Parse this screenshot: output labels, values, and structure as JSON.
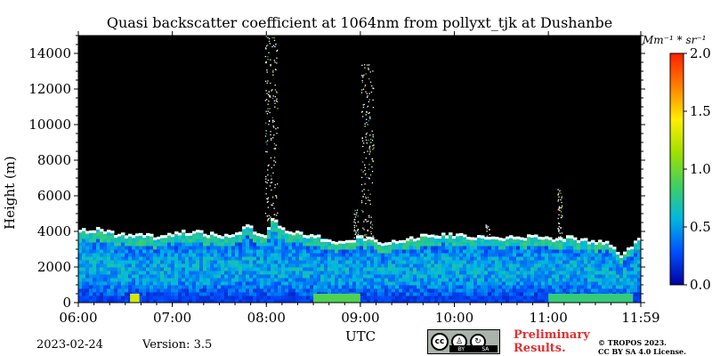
{
  "chart_data": {
    "type": "heatmap",
    "title": "Quasi backscatter coefficient at 1064nm from pollyxt_tjk at Dushanbe",
    "xlabel": "UTC",
    "ylabel": "Height (m)",
    "xlim": [
      "06:00",
      "11:59"
    ],
    "ylim": [
      0,
      15000
    ],
    "x_ticks": [
      "06:00",
      "07:00",
      "08:00",
      "09:00",
      "10:00",
      "11:00",
      "11:59"
    ],
    "x_tick_hours": [
      6.0,
      7.0,
      8.0,
      9.0,
      10.0,
      11.0,
      11.983
    ],
    "y_ticks": [
      0,
      2000,
      4000,
      6000,
      8000,
      10000,
      12000,
      14000
    ],
    "y_tick_labels": [
      "0",
      "2000",
      "4000",
      "6000",
      "8000",
      "10000",
      "12000",
      "14000"
    ],
    "colorbar": {
      "unit_label": "Mm⁻¹ * sr⁻¹",
      "range": [
        0.0,
        2.0
      ],
      "ticks": [
        "0.0",
        "0.5",
        "1.0",
        "1.5",
        "2.0"
      ],
      "tick_values": [
        0.0,
        0.5,
        1.0,
        1.5,
        2.0
      ],
      "colormap": [
        "#0000a0",
        "#0050ff",
        "#00b8e0",
        "#40d060",
        "#a0e000",
        "#ffee00",
        "#ff8000",
        "#ff2000"
      ]
    },
    "background_color": "#000000",
    "layer_top_profile_m": [
      [
        6.0,
        3900
      ],
      [
        6.2,
        4000
      ],
      [
        6.4,
        3700
      ],
      [
        6.6,
        3700
      ],
      [
        6.8,
        3600
      ],
      [
        7.0,
        3800
      ],
      [
        7.2,
        3900
      ],
      [
        7.4,
        3700
      ],
      [
        7.6,
        3600
      ],
      [
        7.8,
        4200
      ],
      [
        7.95,
        3500
      ],
      [
        8.05,
        4600
      ],
      [
        8.2,
        3900
      ],
      [
        8.4,
        3700
      ],
      [
        8.6,
        3500
      ],
      [
        8.8,
        3300
      ],
      [
        9.0,
        3600
      ],
      [
        9.2,
        3300
      ],
      [
        9.4,
        3400
      ],
      [
        9.6,
        3600
      ],
      [
        9.8,
        3700
      ],
      [
        10.0,
        3700
      ],
      [
        10.2,
        3600
      ],
      [
        10.4,
        3500
      ],
      [
        10.6,
        3500
      ],
      [
        10.8,
        3600
      ],
      [
        11.0,
        3500
      ],
      [
        11.2,
        3500
      ],
      [
        11.4,
        3400
      ],
      [
        11.6,
        3300
      ],
      [
        11.75,
        2500
      ],
      [
        11.9,
        3200
      ],
      [
        11.983,
        3600
      ]
    ],
    "plumes": [
      {
        "time": 8.05,
        "top_m": 15000
      },
      {
        "time": 8.95,
        "top_m": 5400
      },
      {
        "time": 9.07,
        "top_m": 13400
      },
      {
        "time": 10.35,
        "top_m": 4400
      },
      {
        "time": 11.12,
        "top_m": 6400
      }
    ],
    "surface_high_segments": [
      {
        "start": 6.55,
        "end": 6.65,
        "value": 1.3
      },
      {
        "start": 8.5,
        "end": 9.0,
        "value": 0.9
      },
      {
        "start": 11.0,
        "end": 11.9,
        "value": 0.8
      }
    ],
    "grid": false
  },
  "footer": {
    "date": "2023-02-24",
    "version": "Version: 3.5",
    "cc_label_cc": "cc",
    "cc_by": "BY",
    "cc_sa": "SA",
    "preliminary_line1": "Preliminary",
    "preliminary_line2": "Results.",
    "copyright_line1": "© TROPOS 2023.",
    "copyright_line2": "CC BY SA 4.0 License."
  }
}
